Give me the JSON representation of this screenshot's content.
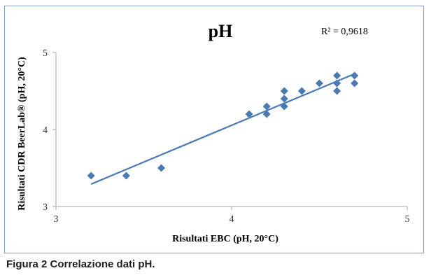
{
  "chart_data": {
    "type": "scatter",
    "title": "pH",
    "annotation": "R² = 0,9618",
    "xlabel": "Risultati EBC (pH, 20°C)",
    "ylabel": "Risultati CDR BeerLab® (pH, 20°C)",
    "xlim": [
      3,
      5
    ],
    "ylim": [
      3,
      5
    ],
    "xticks": [
      "3",
      "4",
      "5"
    ],
    "yticks": [
      "3",
      "4",
      "5"
    ],
    "grid": false,
    "marker": "diamond",
    "marker_color": "#4a7ab5",
    "line_color": "#4a7ab5",
    "trendline": "linear",
    "points": [
      {
        "x": 3.2,
        "y": 3.4
      },
      {
        "x": 3.4,
        "y": 3.4
      },
      {
        "x": 3.6,
        "y": 3.5
      },
      {
        "x": 4.1,
        "y": 4.2
      },
      {
        "x": 4.2,
        "y": 4.2
      },
      {
        "x": 4.2,
        "y": 4.3
      },
      {
        "x": 4.3,
        "y": 4.3
      },
      {
        "x": 4.3,
        "y": 4.4
      },
      {
        "x": 4.3,
        "y": 4.5
      },
      {
        "x": 4.4,
        "y": 4.5
      },
      {
        "x": 4.5,
        "y": 4.6
      },
      {
        "x": 4.6,
        "y": 4.5
      },
      {
        "x": 4.6,
        "y": 4.6
      },
      {
        "x": 4.6,
        "y": 4.7
      },
      {
        "x": 4.7,
        "y": 4.6
      },
      {
        "x": 4.7,
        "y": 4.7
      }
    ]
  },
  "caption": "Figura 2 Correlazione dati pH."
}
